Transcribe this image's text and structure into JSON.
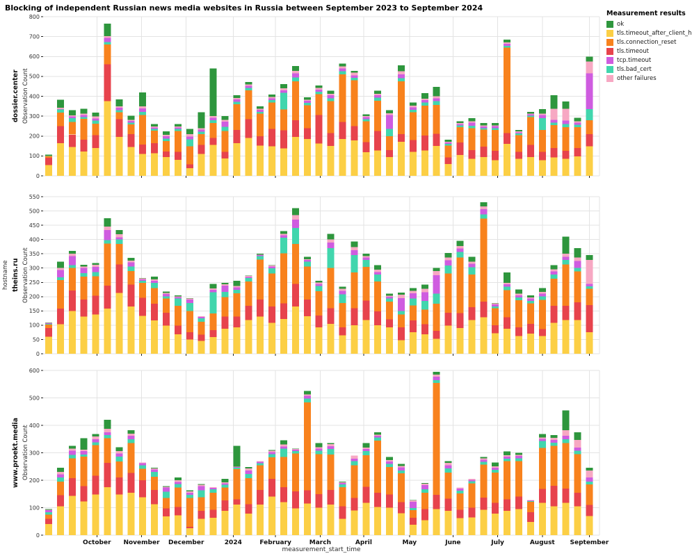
{
  "title": "Blocking of independent Russian news media websites in Russia between September 2023 to September 2024",
  "legend": {
    "title": "Measurement results",
    "items": [
      {
        "label": "ok"
      },
      {
        "label": "tls.timeout_after_client_hello"
      },
      {
        "label": "tls.connection_reset"
      },
      {
        "label": "tls.timeout"
      },
      {
        "label": "tcp.timeout"
      },
      {
        "label": "tls.bad_cert"
      },
      {
        "label": "other failures"
      }
    ]
  },
  "colors": {
    "ok": "#2e963d",
    "tls.timeout_after_client_hello": "#fccf45",
    "tls.connection_reset": "#f8821d",
    "tls.timeout": "#e7434c",
    "tcp.timeout": "#cf5ce0",
    "tls.bad_cert": "#41d6ad",
    "other failures": "#f7a8c3"
  },
  "axes": {
    "x_title": "measurement_start_time",
    "y_title": "Observation Count",
    "outer_y_title": "hostname"
  },
  "months": {
    "labels": [
      "October",
      "November",
      "December",
      "2024",
      "February",
      "March",
      "April",
      "May",
      "June",
      "July",
      "August",
      "September"
    ],
    "positions": [
      5.1,
      8.9,
      12.7,
      16.7,
      20.3,
      24.1,
      27.8,
      31.7,
      35.4,
      39.2,
      43.0,
      47.0
    ]
  },
  "series_order": [
    "tls.timeout_after_client_hello",
    "tls.timeout",
    "tls.connection_reset",
    "tls.bad_cert",
    "tcp.timeout",
    "other failures",
    "ok"
  ],
  "chart_data": [
    {
      "type": "bar",
      "stacked": true,
      "hostname": "dossier.center",
      "ylabel": "Observation Count",
      "ylim": [
        0,
        800
      ],
      "ytick_step": 100,
      "grid": true,
      "bars": [
        [
          55,
          35,
          10,
          2,
          0,
          0,
          5
        ],
        [
          165,
          85,
          68,
          15,
          2,
          8,
          40
        ],
        [
          145,
          62,
          63,
          20,
          8,
          6,
          26
        ],
        [
          123,
          58,
          105,
          10,
          10,
          7,
          25
        ],
        [
          140,
          64,
          58,
          15,
          12,
          9,
          20
        ],
        [
          375,
          185,
          100,
          12,
          22,
          8,
          63
        ],
        [
          195,
          90,
          35,
          10,
          12,
          8,
          35
        ],
        [
          145,
          65,
          48,
          10,
          8,
          5,
          22
        ],
        [
          110,
          48,
          148,
          15,
          18,
          11,
          70
        ],
        [
          113,
          52,
          62,
          8,
          8,
          5,
          12
        ],
        [
          95,
          28,
          52,
          12,
          12,
          8,
          17
        ],
        [
          80,
          40,
          105,
          10,
          8,
          5,
          12
        ],
        [
          38,
          20,
          90,
          35,
          15,
          12,
          25
        ],
        [
          110,
          45,
          55,
          12,
          10,
          8,
          80
        ],
        [
          155,
          35,
          75,
          15,
          12,
          8,
          240
        ],
        [
          88,
          32,
          105,
          22,
          25,
          10,
          18
        ],
        [
          165,
          65,
          130,
          12,
          12,
          8,
          13
        ],
        [
          190,
          95,
          145,
          12,
          10,
          8,
          12
        ],
        [
          152,
          48,
          112,
          10,
          10,
          6,
          12
        ],
        [
          148,
          88,
          132,
          12,
          10,
          6,
          12
        ],
        [
          138,
          90,
          105,
          85,
          12,
          10,
          22
        ],
        [
          195,
          85,
          195,
          20,
          20,
          12,
          25
        ],
        [
          185,
          55,
          115,
          12,
          10,
          6,
          12
        ],
        [
          162,
          143,
          105,
          12,
          12,
          8,
          13
        ],
        [
          150,
          65,
          160,
          15,
          15,
          8,
          15
        ],
        [
          185,
          85,
          240,
          15,
          15,
          10,
          15
        ],
        [
          178,
          72,
          230,
          12,
          12,
          14,
          10
        ],
        [
          118,
          52,
          105,
          10,
          10,
          5,
          10
        ],
        [
          128,
          98,
          152,
          15,
          12,
          8,
          15
        ],
        [
          95,
          35,
          70,
          35,
          70,
          10,
          15
        ],
        [
          172,
          38,
          265,
          15,
          20,
          15,
          30
        ],
        [
          120,
          60,
          140,
          12,
          12,
          8,
          16
        ],
        [
          128,
          75,
          150,
          15,
          12,
          8,
          27
        ],
        [
          150,
          62,
          145,
          18,
          15,
          10,
          48
        ],
        [
          60,
          32,
          60,
          8,
          8,
          4,
          10
        ],
        [
          105,
          62,
          78,
          8,
          8,
          5,
          9
        ],
        [
          85,
          45,
          110,
          12,
          15,
          8,
          15
        ],
        [
          95,
          52,
          85,
          8,
          8,
          5,
          12
        ],
        [
          78,
          48,
          105,
          8,
          10,
          5,
          11
        ],
        [
          160,
          55,
          430,
          8,
          10,
          7,
          15
        ],
        [
          85,
          35,
          85,
          8,
          6,
          4,
          8
        ],
        [
          95,
          60,
          140,
          8,
          6,
          4,
          8
        ],
        [
          78,
          42,
          110,
          60,
          15,
          8,
          22
        ],
        [
          92,
          48,
          115,
          12,
          15,
          55,
          68
        ],
        [
          85,
          40,
          120,
          15,
          18,
          60,
          35
        ],
        [
          98,
          42,
          105,
          12,
          10,
          8,
          17
        ],
        [
          148,
          62,
          70,
          55,
          180,
          60,
          25
        ]
      ]
    },
    {
      "type": "bar",
      "stacked": true,
      "hostname": "theins.ru",
      "ylabel": "Observation Count",
      "ylim": [
        0,
        550
      ],
      "ytick_step": 50,
      "grid": true,
      "bars": [
        [
          60,
          30,
          12,
          3,
          2,
          1,
          2
        ],
        [
          103,
          55,
          100,
          10,
          25,
          8,
          22
        ],
        [
          150,
          72,
          78,
          10,
          32,
          8,
          10
        ],
        [
          130,
          60,
          80,
          12,
          18,
          5,
          7
        ],
        [
          138,
          65,
          68,
          15,
          18,
          8,
          6
        ],
        [
          158,
          80,
          148,
          12,
          35,
          12,
          30
        ],
        [
          213,
          100,
          72,
          15,
          8,
          10,
          15
        ],
        [
          165,
          77,
          48,
          15,
          15,
          6,
          10
        ],
        [
          133,
          63,
          52,
          8,
          5,
          3,
          1
        ],
        [
          117,
          58,
          55,
          18,
          8,
          5,
          9
        ],
        [
          98,
          45,
          50,
          8,
          8,
          4,
          5
        ],
        [
          68,
          30,
          70,
          25,
          5,
          3,
          4
        ],
        [
          50,
          25,
          75,
          28,
          12,
          3,
          2
        ],
        [
          45,
          22,
          45,
          12,
          5,
          3,
          0
        ],
        [
          58,
          25,
          58,
          75,
          8,
          5,
          15
        ],
        [
          88,
          42,
          68,
          18,
          22,
          5,
          5
        ],
        [
          92,
          38,
          82,
          12,
          8,
          5,
          18
        ],
        [
          118,
          50,
          85,
          12,
          4,
          3,
          2
        ],
        [
          130,
          60,
          140,
          12,
          3,
          2,
          3
        ],
        [
          108,
          58,
          115,
          18,
          6,
          4,
          1
        ],
        [
          122,
          55,
          175,
          55,
          8,
          5,
          10
        ],
        [
          165,
          80,
          140,
          55,
          30,
          15,
          25
        ],
        [
          132,
          58,
          115,
          18,
          5,
          3,
          9
        ],
        [
          92,
          42,
          85,
          18,
          8,
          4,
          6
        ],
        [
          105,
          55,
          140,
          70,
          20,
          10,
          20
        ],
        [
          65,
          28,
          85,
          30,
          12,
          8,
          7
        ],
        [
          100,
          60,
          125,
          60,
          18,
          10,
          20
        ],
        [
          118,
          68,
          118,
          25,
          8,
          5,
          8
        ],
        [
          100,
          48,
          105,
          25,
          8,
          8,
          16
        ],
        [
          92,
          28,
          62,
          12,
          5,
          4,
          7
        ],
        [
          48,
          45,
          45,
          12,
          45,
          12,
          7
        ],
        [
          75,
          42,
          52,
          25,
          18,
          8,
          10
        ],
        [
          68,
          35,
          52,
          30,
          30,
          12,
          15
        ],
        [
          52,
          28,
          95,
          35,
          65,
          15,
          10
        ],
        [
          98,
          45,
          138,
          28,
          18,
          10,
          16
        ],
        [
          90,
          52,
          195,
          20,
          12,
          8,
          18
        ],
        [
          118,
          45,
          115,
          25,
          12,
          8,
          17
        ],
        [
          128,
          55,
          290,
          15,
          18,
          10,
          14
        ],
        [
          72,
          28,
          60,
          5,
          8,
          3,
          2
        ],
        [
          88,
          40,
          95,
          12,
          8,
          5,
          37
        ],
        [
          62,
          30,
          95,
          10,
          8,
          5,
          15
        ],
        [
          70,
          35,
          72,
          8,
          8,
          4,
          8
        ],
        [
          62,
          25,
          102,
          12,
          10,
          6,
          13
        ],
        [
          108,
          60,
          95,
          15,
          10,
          8,
          14
        ],
        [
          118,
          50,
          145,
          15,
          12,
          10,
          60
        ],
        [
          118,
          62,
          108,
          12,
          25,
          12,
          33
        ],
        [
          75,
          95,
          58,
          8,
          8,
          85,
          16
        ]
      ]
    },
    {
      "type": "bar",
      "stacked": true,
      "hostname": "www.proekt.media",
      "ylabel": "Observation Count",
      "ylim": [
        0,
        600
      ],
      "ytick_step": 100,
      "grid": true,
      "bars": [
        [
          40,
          20,
          15,
          8,
          8,
          2,
          2
        ],
        [
          105,
          40,
          50,
          15,
          12,
          8,
          15
        ],
        [
          143,
          65,
          72,
          12,
          15,
          8,
          10
        ],
        [
          123,
          55,
          108,
          8,
          12,
          5,
          42
        ],
        [
          148,
          68,
          112,
          10,
          12,
          10,
          8
        ],
        [
          175,
          88,
          90,
          12,
          10,
          12,
          33
        ],
        [
          148,
          62,
          58,
          18,
          12,
          8,
          14
        ],
        [
          155,
          72,
          108,
          15,
          12,
          8,
          12
        ],
        [
          138,
          62,
          42,
          12,
          8,
          3,
          0
        ],
        [
          113,
          52,
          48,
          18,
          8,
          4,
          2
        ],
        [
          68,
          30,
          38,
          22,
          15,
          3,
          2
        ],
        [
          72,
          30,
          72,
          12,
          8,
          6,
          10
        ],
        [
          25,
          5,
          105,
          12,
          8,
          5,
          3
        ],
        [
          60,
          28,
          50,
          25,
          15,
          5,
          3
        ],
        [
          63,
          30,
          62,
          12,
          5,
          3,
          0
        ],
        [
          88,
          38,
          48,
          10,
          5,
          3,
          13
        ],
        [
          112,
          18,
          110,
          5,
          3,
          2,
          75
        ],
        [
          78,
          35,
          95,
          15,
          12,
          8,
          5
        ],
        [
          112,
          52,
          90,
          8,
          5,
          3,
          0
        ],
        [
          140,
          65,
          78,
          12,
          8,
          5,
          2
        ],
        [
          120,
          55,
          110,
          30,
          8,
          8,
          14
        ],
        [
          98,
          62,
          138,
          8,
          5,
          3,
          1
        ],
        [
          115,
          48,
          320,
          15,
          10,
          5,
          12
        ],
        [
          100,
          50,
          145,
          12,
          8,
          5,
          15
        ],
        [
          112,
          52,
          130,
          20,
          10,
          8,
          3
        ],
        [
          60,
          45,
          70,
          10,
          5,
          3,
          2
        ],
        [
          90,
          45,
          120,
          15,
          8,
          12,
          0
        ],
        [
          118,
          58,
          115,
          15,
          8,
          5,
          16
        ],
        [
          102,
          52,
          190,
          12,
          6,
          4,
          9
        ],
        [
          100,
          48,
          100,
          12,
          8,
          5,
          12
        ],
        [
          80,
          40,
          105,
          10,
          12,
          5,
          8
        ],
        [
          38,
          25,
          28,
          8,
          22,
          5,
          2
        ],
        [
          55,
          40,
          60,
          12,
          15,
          5,
          3
        ],
        [
          95,
          52,
          408,
          10,
          12,
          8,
          10
        ],
        [
          88,
          45,
          95,
          15,
          12,
          8,
          7
        ],
        [
          62,
          30,
          60,
          10,
          8,
          3,
          0
        ],
        [
          65,
          35,
          88,
          8,
          5,
          4,
          0
        ],
        [
          92,
          45,
          120,
          10,
          8,
          5,
          5
        ],
        [
          78,
          40,
          110,
          10,
          8,
          5,
          14
        ],
        [
          88,
          42,
          140,
          8,
          8,
          5,
          14
        ],
        [
          95,
          45,
          130,
          10,
          8,
          5,
          7
        ],
        [
          48,
          35,
          38,
          3,
          2,
          2,
          0
        ],
        [
          118,
          50,
          150,
          25,
          8,
          5,
          12
        ],
        [
          105,
          75,
          145,
          12,
          10,
          8,
          10
        ],
        [
          118,
          52,
          165,
          15,
          12,
          20,
          73
        ],
        [
          105,
          50,
          140,
          12,
          12,
          28,
          28
        ],
        [
          70,
          40,
          75,
          10,
          15,
          25,
          10
        ]
      ]
    }
  ]
}
